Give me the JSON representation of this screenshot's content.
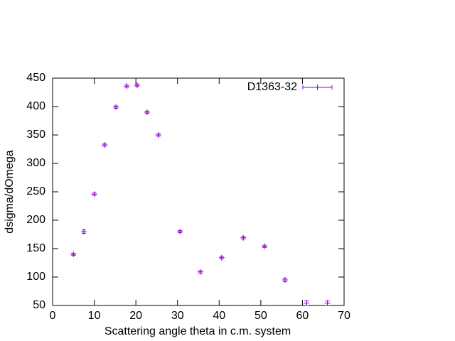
{
  "chart_data": {
    "type": "scatter",
    "xlabel": "Scattering angle theta in c.m. system",
    "ylabel": "dsigma/dOmega",
    "xlim": [
      0,
      70
    ],
    "xticks": [
      0,
      10,
      20,
      30,
      40,
      50,
      60,
      70
    ],
    "ylim": [
      50,
      450
    ],
    "yticks": [
      50,
      100,
      150,
      200,
      250,
      300,
      350,
      400,
      450
    ],
    "legend_position": "top-right",
    "series": [
      {
        "name": "D1363-32",
        "color": "#9400d3",
        "x": [
          5,
          7.5,
          10,
          12.5,
          15.2,
          17.8,
          20.3,
          22.7,
          25.4,
          30.6,
          35.5,
          40.6,
          45.8,
          50.9,
          55.8,
          61,
          66
        ],
        "values": [
          140,
          180,
          246,
          332.5,
          399,
          436,
          437.5,
          390,
          350,
          180,
          109,
          134,
          169,
          154,
          95,
          54,
          54
        ],
        "errors": [
          2,
          3,
          2,
          2,
          2,
          2,
          2,
          2,
          2,
          2,
          2,
          2,
          2,
          2,
          3,
          4,
          4
        ]
      }
    ]
  }
}
